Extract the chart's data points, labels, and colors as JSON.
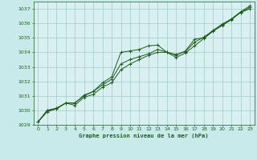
{
  "background_color": "#c8eaea",
  "plot_bg_color": "#d8f0f0",
  "grid_color": "#a0c8c8",
  "line_color": "#1e5c1e",
  "ylabel_color": "#1e5c1e",
  "xlabel": "Graphe pression niveau de la mer (hPa)",
  "ylim": [
    1029,
    1037.5
  ],
  "xlim": [
    -0.5,
    23.5
  ],
  "yticks": [
    1029,
    1030,
    1031,
    1032,
    1033,
    1034,
    1035,
    1036,
    1037
  ],
  "xticks": [
    0,
    1,
    2,
    3,
    4,
    5,
    6,
    7,
    8,
    9,
    10,
    11,
    12,
    13,
    14,
    15,
    16,
    17,
    18,
    19,
    20,
    21,
    22,
    23
  ],
  "series1_x": [
    0,
    1,
    2,
    3,
    4,
    5,
    6,
    7,
    8,
    9,
    10,
    11,
    12,
    13,
    14,
    15,
    16,
    17,
    18,
    19,
    20,
    21,
    22,
    23
  ],
  "series1_y": [
    1029.2,
    1030.0,
    1030.1,
    1030.5,
    1030.5,
    1031.0,
    1031.3,
    1031.9,
    1032.3,
    1034.0,
    1034.1,
    1034.2,
    1034.45,
    1034.5,
    1034.0,
    1033.8,
    1034.1,
    1034.9,
    1035.0,
    1035.5,
    1035.9,
    1036.3,
    1036.8,
    1037.2
  ],
  "series2_x": [
    0,
    1,
    2,
    3,
    4,
    5,
    6,
    7,
    8,
    9,
    10,
    11,
    12,
    13,
    14,
    15,
    16,
    17,
    18,
    19,
    20,
    21,
    22,
    23
  ],
  "series2_y": [
    1029.2,
    1029.9,
    1030.1,
    1030.5,
    1030.35,
    1030.9,
    1031.1,
    1031.6,
    1031.9,
    1032.8,
    1033.2,
    1033.5,
    1033.8,
    1034.0,
    1034.0,
    1033.65,
    1033.95,
    1034.45,
    1034.95,
    1035.45,
    1035.85,
    1036.25,
    1036.75,
    1037.0
  ],
  "series3_x": [
    0,
    1,
    2,
    3,
    4,
    5,
    6,
    7,
    8,
    9,
    10,
    11,
    12,
    13,
    14,
    15,
    16,
    17,
    18,
    19,
    20,
    21,
    22,
    23
  ],
  "series3_y": [
    1029.2,
    1030.0,
    1030.15,
    1030.5,
    1030.5,
    1031.05,
    1031.3,
    1031.75,
    1032.15,
    1033.2,
    1033.5,
    1033.7,
    1033.9,
    1034.2,
    1034.0,
    1033.85,
    1034.05,
    1034.7,
    1035.05,
    1035.5,
    1035.95,
    1036.3,
    1036.75,
    1037.1
  ]
}
